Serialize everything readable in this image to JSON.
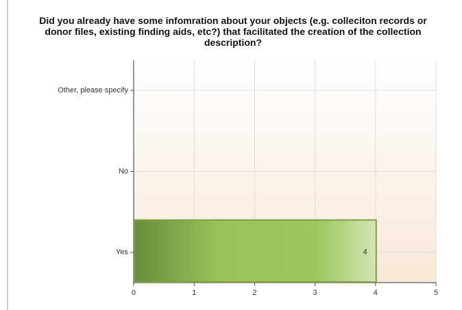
{
  "chart_data": {
    "type": "hbar",
    "title": "Did you already have some infomration about your objects (e.g. colleciton records or donor files, existing finding aids, etc?) that facilitated the creation of the collection description?",
    "categories": [
      "Other, please specify",
      "No",
      "Yes"
    ],
    "values": [
      0,
      0,
      4
    ],
    "color": "#8cb848",
    "xlim": [
      0,
      5
    ],
    "xticks": [
      0,
      1,
      2,
      3,
      4,
      5
    ],
    "grid": true
  }
}
